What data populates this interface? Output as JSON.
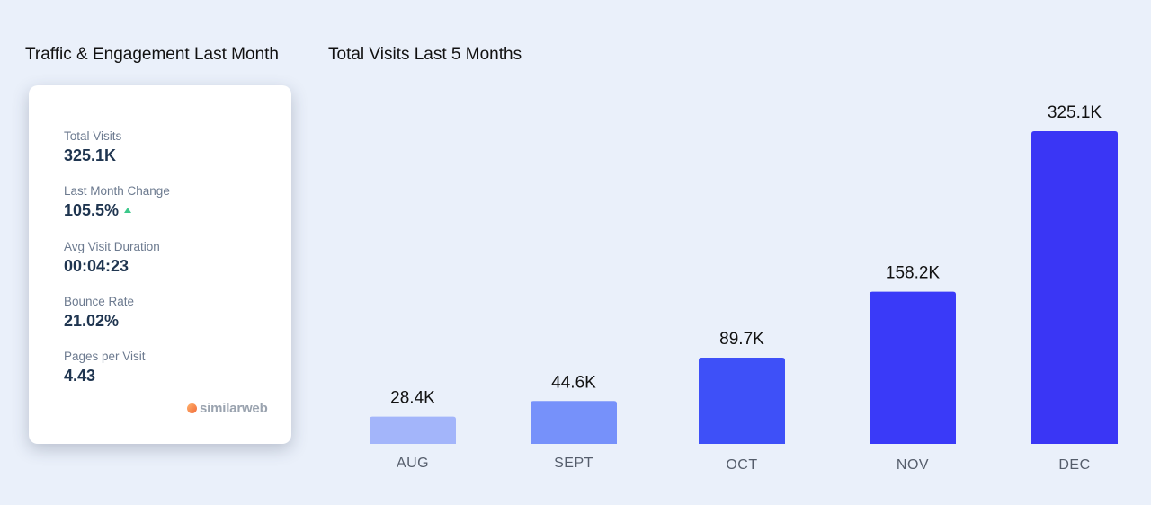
{
  "left_panel": {
    "title": "Traffic & Engagement Last Month",
    "metrics": [
      {
        "label": "Total Visits",
        "value": "325.1K"
      },
      {
        "label": "Last Month Change",
        "value": "105.5%",
        "trend": "up"
      },
      {
        "label": "Avg Visit Duration",
        "value": "00:04:23"
      },
      {
        "label": "Bounce Rate",
        "value": "21.02%"
      },
      {
        "label": "Pages per Visit",
        "value": "4.43"
      }
    ],
    "brand": "similarweb",
    "colors": {
      "trend_up": "#3cc88a",
      "value": "#1f3550",
      "label": "#6c7a8f"
    }
  },
  "chart_data": {
    "type": "bar",
    "title": "Total Visits Last 5 Months",
    "categories": [
      "AUG",
      "SEPT",
      "OCT",
      "NOV",
      "DEC"
    ],
    "values": [
      28.4,
      44.6,
      89.7,
      158.2,
      325.1
    ],
    "value_labels": [
      "28.4K",
      "44.6K",
      "89.7K",
      "158.2K",
      "325.1K"
    ],
    "unit": "K",
    "bar_colors": [
      "#a3b5fa",
      "#7691fa",
      "#3e50f8",
      "#3a3af8",
      "#3a36f5"
    ],
    "xlabel": "",
    "ylabel": "",
    "ylim": [
      0,
      325.1
    ],
    "grid": false
  }
}
